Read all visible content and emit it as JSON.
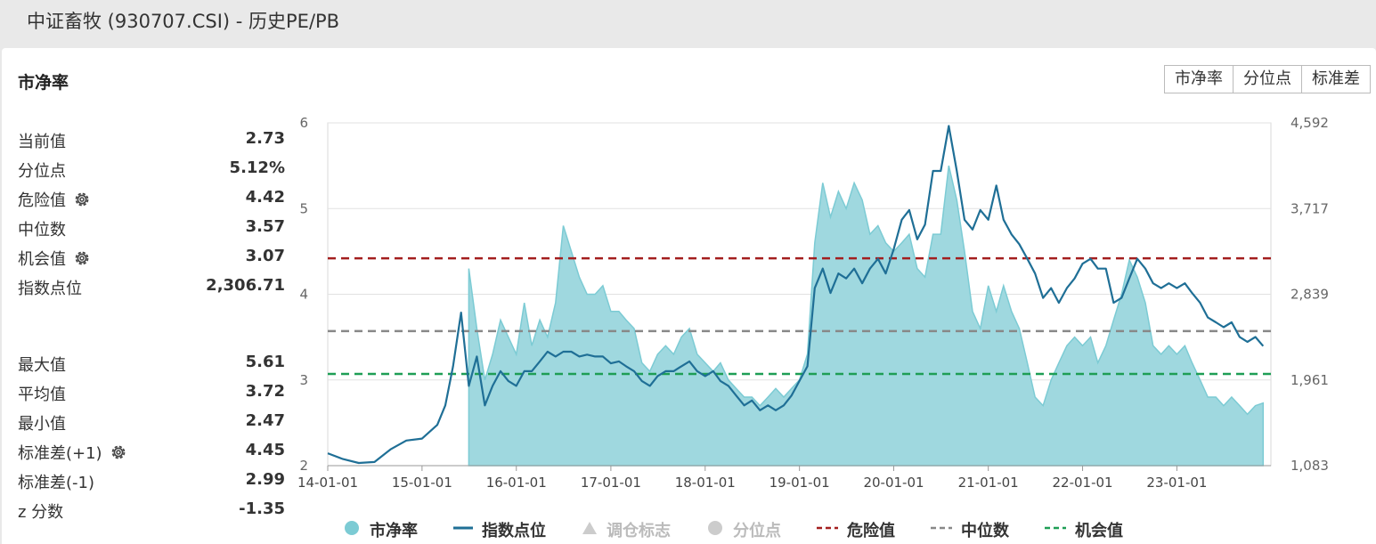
{
  "page": {
    "title": "中证畜牧 (930707.CSI) - 历史PE/PB"
  },
  "section": {
    "title": "市净率"
  },
  "toggles": [
    {
      "label": "市净率"
    },
    {
      "label": "分位点"
    },
    {
      "label": "标准差"
    }
  ],
  "stats_top": [
    {
      "label": "当前值",
      "value": "2.73",
      "gear": false
    },
    {
      "label": "分位点",
      "value": "5.12%",
      "gear": false
    },
    {
      "label": "危险值",
      "value": "4.42",
      "gear": true
    },
    {
      "label": "中位数",
      "value": "3.57",
      "gear": false
    },
    {
      "label": "机会值",
      "value": "3.07",
      "gear": true
    },
    {
      "label": "指数点位",
      "value": "2,306.71",
      "gear": false
    }
  ],
  "stats_bottom": [
    {
      "label": "最大值",
      "value": "5.61",
      "gear": false
    },
    {
      "label": "平均值",
      "value": "3.72",
      "gear": false
    },
    {
      "label": "最小值",
      "value": "2.47",
      "gear": false
    },
    {
      "label": "标准差(+1)",
      "value": "4.45",
      "gear": true
    },
    {
      "label": "标准差(-1)",
      "value": "2.99",
      "gear": false
    },
    {
      "label": "z 分数",
      "value": "-1.35",
      "gear": false
    }
  ],
  "legend": [
    {
      "label": "市净率",
      "type": "circle",
      "color": "#7ccbd4",
      "dim": false
    },
    {
      "label": "指数点位",
      "type": "line",
      "color": "#1f6f96",
      "dim": false
    },
    {
      "label": "调仓标志",
      "type": "triangle",
      "color": "#cccccc",
      "dim": true
    },
    {
      "label": "分位点",
      "type": "circle",
      "color": "#cccccc",
      "dim": true
    },
    {
      "label": "危险值",
      "type": "dash",
      "color": "#a31f1f",
      "dim": false
    },
    {
      "label": "中位数",
      "type": "dash",
      "color": "#888888",
      "dim": false
    },
    {
      "label": "机会值",
      "type": "dash",
      "color": "#1e9e55",
      "dim": false
    }
  ],
  "chart_data": {
    "type": "area",
    "x_start": "2014-01-01",
    "x_end": "2023-12-31",
    "x_tick_labels": [
      "14-01-01",
      "15-01-01",
      "16-01-01",
      "17-01-01",
      "18-01-01",
      "19-01-01",
      "20-01-01",
      "21-01-01",
      "22-01-01",
      "23-01-01"
    ],
    "y_left": {
      "range": [
        2,
        6
      ],
      "ticks": [
        "2",
        "3",
        "4",
        "5",
        "6"
      ]
    },
    "y_right": {
      "range": [
        1083,
        4592
      ],
      "ticks": [
        "1,083",
        "1,961",
        "2,839",
        "3,717",
        "4,592"
      ]
    },
    "grid": true,
    "legend_position": "bottom",
    "reference_lines": [
      {
        "name": "危险值",
        "value": 4.42,
        "color": "#a31f1f"
      },
      {
        "name": "中位数",
        "value": 3.57,
        "color": "#888888"
      },
      {
        "name": "机会值",
        "value": 3.07,
        "color": "#1e9e55"
      }
    ],
    "pb_series": {
      "name": "市净率",
      "axis": "left",
      "color": "#7ccbd4",
      "points": [
        [
          "2015-07-01",
          4.3
        ],
        [
          "2015-08-01",
          3.6
        ],
        [
          "2015-09-01",
          3.0
        ],
        [
          "2015-10-01",
          3.3
        ],
        [
          "2015-11-01",
          3.7
        ],
        [
          "2015-12-01",
          3.5
        ],
        [
          "2016-01-01",
          3.3
        ],
        [
          "2016-02-01",
          3.9
        ],
        [
          "2016-03-01",
          3.4
        ],
        [
          "2016-04-01",
          3.7
        ],
        [
          "2016-05-01",
          3.5
        ],
        [
          "2016-06-01",
          3.9
        ],
        [
          "2016-07-01",
          4.8
        ],
        [
          "2016-08-01",
          4.5
        ],
        [
          "2016-09-01",
          4.2
        ],
        [
          "2016-10-01",
          4.0
        ],
        [
          "2016-11-01",
          4.0
        ],
        [
          "2016-12-01",
          4.1
        ],
        [
          "2017-01-01",
          3.8
        ],
        [
          "2017-02-01",
          3.8
        ],
        [
          "2017-03-01",
          3.7
        ],
        [
          "2017-04-01",
          3.6
        ],
        [
          "2017-05-01",
          3.2
        ],
        [
          "2017-06-01",
          3.1
        ],
        [
          "2017-07-01",
          3.3
        ],
        [
          "2017-08-01",
          3.4
        ],
        [
          "2017-09-01",
          3.3
        ],
        [
          "2017-10-01",
          3.5
        ],
        [
          "2017-11-01",
          3.6
        ],
        [
          "2017-12-01",
          3.3
        ],
        [
          "2018-01-01",
          3.2
        ],
        [
          "2018-02-01",
          3.1
        ],
        [
          "2018-03-01",
          3.2
        ],
        [
          "2018-04-01",
          3.0
        ],
        [
          "2018-05-01",
          2.9
        ],
        [
          "2018-06-01",
          2.8
        ],
        [
          "2018-07-01",
          2.8
        ],
        [
          "2018-08-01",
          2.7
        ],
        [
          "2018-09-01",
          2.8
        ],
        [
          "2018-10-01",
          2.9
        ],
        [
          "2018-11-01",
          2.8
        ],
        [
          "2018-12-01",
          2.9
        ],
        [
          "2019-01-01",
          3.0
        ],
        [
          "2019-02-01",
          3.3
        ],
        [
          "2019-03-01",
          4.6
        ],
        [
          "2019-04-01",
          5.3
        ],
        [
          "2019-05-01",
          4.9
        ],
        [
          "2019-06-01",
          5.2
        ],
        [
          "2019-07-01",
          5.0
        ],
        [
          "2019-08-01",
          5.3
        ],
        [
          "2019-09-01",
          5.1
        ],
        [
          "2019-10-01",
          4.7
        ],
        [
          "2019-11-01",
          4.8
        ],
        [
          "2019-12-01",
          4.6
        ],
        [
          "2020-01-01",
          4.5
        ],
        [
          "2020-02-01",
          4.6
        ],
        [
          "2020-03-01",
          4.7
        ],
        [
          "2020-04-01",
          4.3
        ],
        [
          "2020-05-01",
          4.2
        ],
        [
          "2020-06-01",
          4.7
        ],
        [
          "2020-07-01",
          4.7
        ],
        [
          "2020-08-01",
          5.5
        ],
        [
          "2020-09-01",
          5.1
        ],
        [
          "2020-10-01",
          4.5
        ],
        [
          "2020-11-01",
          3.8
        ],
        [
          "2020-12-01",
          3.6
        ],
        [
          "2021-01-01",
          4.1
        ],
        [
          "2021-02-01",
          3.8
        ],
        [
          "2021-03-01",
          4.1
        ],
        [
          "2021-04-01",
          3.8
        ],
        [
          "2021-05-01",
          3.6
        ],
        [
          "2021-06-01",
          3.2
        ],
        [
          "2021-07-01",
          2.8
        ],
        [
          "2021-08-01",
          2.7
        ],
        [
          "2021-09-01",
          3.0
        ],
        [
          "2021-10-01",
          3.2
        ],
        [
          "2021-11-01",
          3.4
        ],
        [
          "2021-12-01",
          3.5
        ],
        [
          "2022-01-01",
          3.4
        ],
        [
          "2022-02-01",
          3.5
        ],
        [
          "2022-03-01",
          3.2
        ],
        [
          "2022-04-01",
          3.4
        ],
        [
          "2022-05-01",
          3.7
        ],
        [
          "2022-06-01",
          4.0
        ],
        [
          "2022-07-01",
          4.4
        ],
        [
          "2022-08-01",
          4.2
        ],
        [
          "2022-09-01",
          3.9
        ],
        [
          "2022-10-01",
          3.4
        ],
        [
          "2022-11-01",
          3.3
        ],
        [
          "2022-12-01",
          3.4
        ],
        [
          "2023-01-01",
          3.3
        ],
        [
          "2023-02-01",
          3.4
        ],
        [
          "2023-03-01",
          3.2
        ],
        [
          "2023-04-01",
          3.0
        ],
        [
          "2023-05-01",
          2.8
        ],
        [
          "2023-06-01",
          2.8
        ],
        [
          "2023-07-01",
          2.7
        ],
        [
          "2023-08-01",
          2.8
        ],
        [
          "2023-09-01",
          2.7
        ],
        [
          "2023-10-01",
          2.6
        ],
        [
          "2023-11-01",
          2.7
        ],
        [
          "2023-12-01",
          2.73
        ]
      ]
    },
    "index_series": {
      "name": "指数点位",
      "axis": "right",
      "color": "#1f6f96",
      "points": [
        [
          "2014-01-01",
          1210
        ],
        [
          "2014-03-01",
          1150
        ],
        [
          "2014-05-01",
          1110
        ],
        [
          "2014-07-01",
          1120
        ],
        [
          "2014-09-01",
          1250
        ],
        [
          "2014-11-01",
          1340
        ],
        [
          "2015-01-01",
          1360
        ],
        [
          "2015-03-01",
          1500
        ],
        [
          "2015-04-01",
          1700
        ],
        [
          "2015-05-01",
          2100
        ],
        [
          "2015-06-01",
          2650
        ],
        [
          "2015-07-01",
          1900
        ],
        [
          "2015-08-01",
          2200
        ],
        [
          "2015-09-01",
          1700
        ],
        [
          "2015-10-01",
          1900
        ],
        [
          "2015-11-01",
          2050
        ],
        [
          "2015-12-01",
          1950
        ],
        [
          "2016-01-01",
          1900
        ],
        [
          "2016-02-01",
          2050
        ],
        [
          "2016-03-01",
          2050
        ],
        [
          "2016-04-01",
          2150
        ],
        [
          "2016-05-01",
          2250
        ],
        [
          "2016-06-01",
          2200
        ],
        [
          "2016-07-01",
          2250
        ],
        [
          "2016-08-01",
          2250
        ],
        [
          "2016-09-01",
          2200
        ],
        [
          "2016-10-01",
          2220
        ],
        [
          "2016-11-01",
          2200
        ],
        [
          "2016-12-01",
          2200
        ],
        [
          "2017-01-01",
          2130
        ],
        [
          "2017-02-01",
          2150
        ],
        [
          "2017-03-01",
          2100
        ],
        [
          "2017-04-01",
          2050
        ],
        [
          "2017-05-01",
          1950
        ],
        [
          "2017-06-01",
          1900
        ],
        [
          "2017-07-01",
          2000
        ],
        [
          "2017-08-01",
          2050
        ],
        [
          "2017-09-01",
          2050
        ],
        [
          "2017-10-01",
          2100
        ],
        [
          "2017-11-01",
          2150
        ],
        [
          "2017-12-01",
          2050
        ],
        [
          "2018-01-01",
          2000
        ],
        [
          "2018-02-01",
          2050
        ],
        [
          "2018-03-01",
          1950
        ],
        [
          "2018-04-01",
          1900
        ],
        [
          "2018-05-01",
          1800
        ],
        [
          "2018-06-01",
          1700
        ],
        [
          "2018-07-01",
          1750
        ],
        [
          "2018-08-01",
          1650
        ],
        [
          "2018-09-01",
          1700
        ],
        [
          "2018-10-01",
          1650
        ],
        [
          "2018-11-01",
          1700
        ],
        [
          "2018-12-01",
          1800
        ],
        [
          "2019-01-01",
          1950
        ],
        [
          "2019-02-01",
          2100
        ],
        [
          "2019-03-01",
          2900
        ],
        [
          "2019-04-01",
          3100
        ],
        [
          "2019-05-01",
          2850
        ],
        [
          "2019-06-01",
          3050
        ],
        [
          "2019-07-01",
          3000
        ],
        [
          "2019-08-01",
          3100
        ],
        [
          "2019-09-01",
          2950
        ],
        [
          "2019-10-01",
          3100
        ],
        [
          "2019-11-01",
          3200
        ],
        [
          "2019-12-01",
          3050
        ],
        [
          "2020-01-01",
          3300
        ],
        [
          "2020-02-01",
          3600
        ],
        [
          "2020-03-01",
          3700
        ],
        [
          "2020-04-01",
          3400
        ],
        [
          "2020-05-01",
          3550
        ],
        [
          "2020-06-01",
          4100
        ],
        [
          "2020-07-01",
          4100
        ],
        [
          "2020-08-01",
          4560
        ],
        [
          "2020-09-01",
          4100
        ],
        [
          "2020-10-01",
          3600
        ],
        [
          "2020-11-01",
          3500
        ],
        [
          "2020-12-01",
          3700
        ],
        [
          "2021-01-01",
          3600
        ],
        [
          "2021-02-01",
          3950
        ],
        [
          "2021-03-01",
          3600
        ],
        [
          "2021-04-01",
          3450
        ],
        [
          "2021-05-01",
          3350
        ],
        [
          "2021-06-01",
          3200
        ],
        [
          "2021-07-01",
          3050
        ],
        [
          "2021-08-01",
          2800
        ],
        [
          "2021-09-01",
          2900
        ],
        [
          "2021-10-01",
          2750
        ],
        [
          "2021-11-01",
          2900
        ],
        [
          "2021-12-01",
          3000
        ],
        [
          "2022-01-01",
          3150
        ],
        [
          "2022-02-01",
          3200
        ],
        [
          "2022-03-01",
          3100
        ],
        [
          "2022-04-01",
          3100
        ],
        [
          "2022-05-01",
          2750
        ],
        [
          "2022-06-01",
          2800
        ],
        [
          "2022-07-01",
          3000
        ],
        [
          "2022-08-01",
          3200
        ],
        [
          "2022-09-01",
          3100
        ],
        [
          "2022-10-01",
          2950
        ],
        [
          "2022-11-01",
          2900
        ],
        [
          "2022-12-01",
          2950
        ],
        [
          "2023-01-01",
          2900
        ],
        [
          "2023-02-01",
          2950
        ],
        [
          "2023-03-01",
          2850
        ],
        [
          "2023-04-01",
          2750
        ],
        [
          "2023-05-01",
          2600
        ],
        [
          "2023-06-01",
          2550
        ],
        [
          "2023-07-01",
          2500
        ],
        [
          "2023-08-01",
          2550
        ],
        [
          "2023-09-01",
          2400
        ],
        [
          "2023-10-01",
          2350
        ],
        [
          "2023-11-01",
          2400
        ],
        [
          "2023-12-01",
          2306.71
        ]
      ]
    }
  }
}
